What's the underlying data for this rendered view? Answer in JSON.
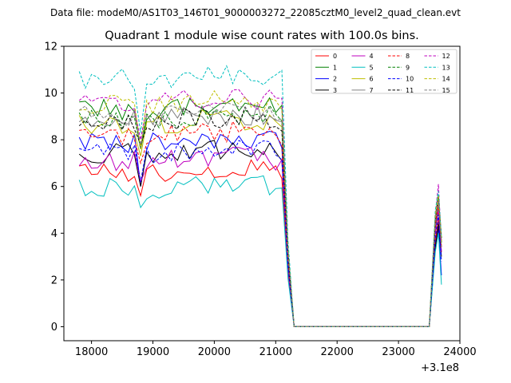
{
  "suptitle": "Data file: modeM0/AS1T03_146T01_9000003272_22085cztM0_level2_quad_clean.evt",
  "chart_data": {
    "type": "line",
    "title": "Quadrant 1 module wise count rates with 100.0s bins.",
    "xlabel": "",
    "ylabel": "",
    "x_offset_label": "+3.1e8",
    "xlim": [
      17550,
      24000
    ],
    "ylim": [
      -0.6,
      12
    ],
    "xticks": [
      18000,
      19000,
      20000,
      21000,
      22000,
      23000,
      24000
    ],
    "xtick_labels": [
      "18000",
      "19000",
      "20000",
      "21000",
      "22000",
      "23000",
      "24000"
    ],
    "yticks": [
      0,
      2,
      4,
      6,
      8,
      10,
      12
    ],
    "ytick_labels": [
      "0",
      "2",
      "4",
      "6",
      "8",
      "10",
      "12"
    ],
    "grid": false,
    "legend_position": "upper-right",
    "legend_columns": 4,
    "x_segment_1": [
      17800,
      17900,
      18000,
      18100,
      18200,
      18300,
      18400,
      18500,
      18600,
      18700,
      18800,
      18900,
      19000,
      19100,
      19200,
      19300,
      19400,
      19500,
      19600,
      19700,
      19800,
      19900,
      20000,
      20100,
      20200,
      20300,
      20400,
      20500,
      20600,
      20700,
      20800,
      20900,
      21000,
      21100,
      21200,
      21300,
      21400,
      21500,
      21600,
      21700,
      21800,
      21900,
      22000,
      22100,
      22200,
      22300,
      22400,
      22500,
      22600,
      22700,
      22800,
      22900,
      23000,
      23100,
      23200,
      23300,
      23400,
      23500
    ],
    "x_segment_2": [
      23600,
      23650,
      23700
    ],
    "series": [
      {
        "name": "0",
        "color": "#ff0000",
        "dash": "solid",
        "base": 6.6,
        "dip": 5.6,
        "end": [
          3.6,
          4.6,
          3.2
        ]
      },
      {
        "name": "1",
        "color": "#008000",
        "dash": "solid",
        "base": 9.3,
        "dip": 7.6,
        "end": [
          4.0,
          5.4,
          3.6
        ]
      },
      {
        "name": "2",
        "color": "#0000ff",
        "dash": "solid",
        "base": 7.9,
        "dip": 6.0,
        "end": [
          3.4,
          4.2,
          2.2
        ]
      },
      {
        "name": "3",
        "color": "#000000",
        "dash": "solid",
        "base": 7.4,
        "dip": 6.0,
        "end": [
          3.4,
          4.4,
          3.0
        ]
      },
      {
        "name": "4",
        "color": "#bf00bf",
        "dash": "solid",
        "base": 7.1,
        "dip": 6.2,
        "end": [
          4.0,
          5.0,
          3.2
        ]
      },
      {
        "name": "5",
        "color": "#00bfbf",
        "dash": "solid",
        "base": 5.9,
        "dip": 5.1,
        "end": [
          3.2,
          4.0,
          1.8
        ]
      },
      {
        "name": "6",
        "color": "#bfbf00",
        "dash": "solid",
        "base": 8.7,
        "dip": 7.3,
        "end": [
          4.6,
          5.6,
          3.8
        ]
      },
      {
        "name": "7",
        "color": "#808080",
        "dash": "solid",
        "base": 8.9,
        "dip": 7.6,
        "end": [
          4.4,
          5.4,
          3.4
        ]
      },
      {
        "name": "8",
        "color": "#ff0000",
        "dash": "dashed",
        "base": 8.2,
        "dip": 7.0,
        "end": [
          4.4,
          5.2,
          3.4
        ]
      },
      {
        "name": "9",
        "color": "#008000",
        "dash": "dashed",
        "base": 8.9,
        "dip": 7.6,
        "end": [
          4.6,
          5.6,
          3.6
        ]
      },
      {
        "name": "10",
        "color": "#0000ff",
        "dash": "dashed",
        "base": 7.4,
        "dip": 6.2,
        "end": [
          3.8,
          4.8,
          2.8
        ]
      },
      {
        "name": "11",
        "color": "#000000",
        "dash": "dashed",
        "base": 8.8,
        "dip": 7.8,
        "end": [
          4.6,
          5.6,
          3.8
        ]
      },
      {
        "name": "12",
        "color": "#bf00bf",
        "dash": "dashed",
        "base": 9.6,
        "dip": 8.0,
        "end": [
          4.8,
          6.1,
          3.6
        ]
      },
      {
        "name": "13",
        "color": "#00bfbf",
        "dash": "dashed",
        "base": 10.6,
        "dip": 8.3,
        "end": [
          5.0,
          5.8,
          3.8
        ]
      },
      {
        "name": "14",
        "color": "#bfbf00",
        "dash": "dashed",
        "base": 9.5,
        "dip": 7.6,
        "end": [
          4.8,
          5.6,
          3.6
        ]
      },
      {
        "name": "15",
        "color": "#808080",
        "dash": "dashed",
        "base": 9.0,
        "dip": 7.8,
        "end": [
          4.6,
          5.4,
          3.4
        ]
      }
    ]
  }
}
